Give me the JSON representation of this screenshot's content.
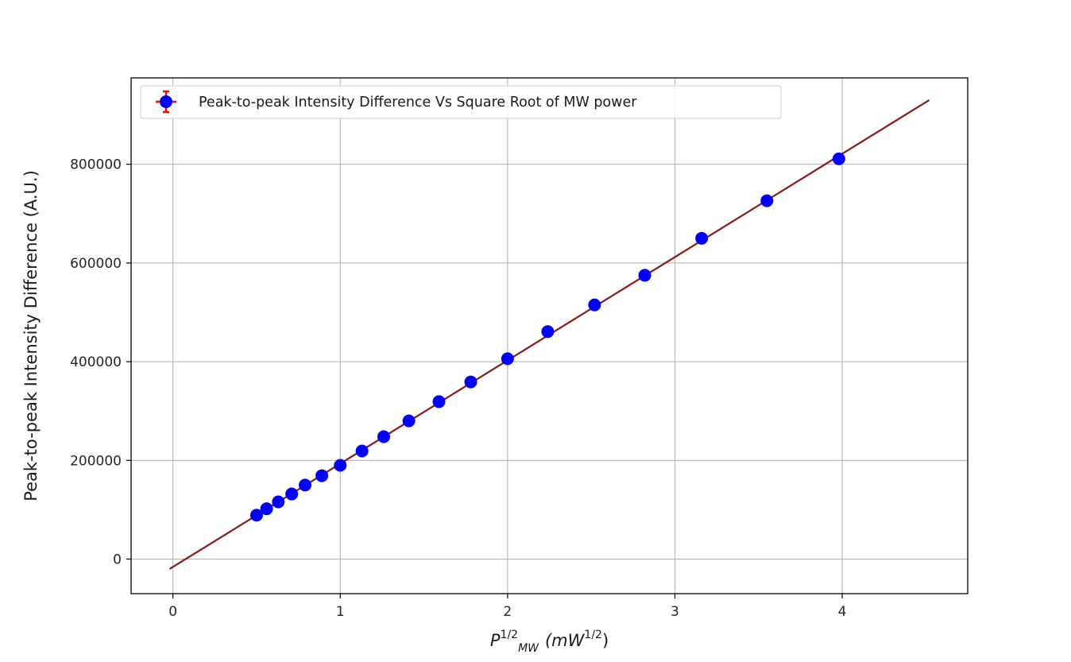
{
  "chart_data": {
    "type": "scatter",
    "title": "",
    "xlabel": {
      "base": "P",
      "superscript": "1/2",
      "subscript": "MW",
      "unit_open": "(mW",
      "unit_superscript": "1/2",
      "unit_close": ")"
    },
    "ylabel": "Peak-to-peak Intensity Difference (A.U.)",
    "xlim": [
      -0.25,
      4.75
    ],
    "ylim": [
      -70000,
      975000
    ],
    "x_ticks": [
      0,
      1,
      2,
      3,
      4
    ],
    "x_tick_labels": [
      "0",
      "1",
      "2",
      "3",
      "4"
    ],
    "y_ticks": [
      0,
      200000,
      400000,
      600000,
      800000
    ],
    "y_tick_labels": [
      "0",
      "200000",
      "400000",
      "600000",
      "800000"
    ],
    "grid": true,
    "legend": {
      "placement": "upper-left",
      "entries": [
        "Peak-to-peak Intensity Difference Vs Square Root of MW power"
      ]
    },
    "series": [
      {
        "name": "Peak-to-peak Intensity Difference Vs Square Root of MW power",
        "kind": "errorbar-points",
        "color": "#0000ff",
        "error_color": "#ff0000",
        "x": [
          0.5,
          0.56,
          0.63,
          0.71,
          0.79,
          0.89,
          1.0,
          1.13,
          1.26,
          1.41,
          1.59,
          1.78,
          2.0,
          2.24,
          2.52,
          2.82,
          3.16,
          3.55,
          3.98
        ],
        "y": [
          89000,
          102000,
          116000,
          132000,
          150000,
          169000,
          190000,
          219000,
          248000,
          280000,
          319000,
          359000,
          406000,
          461000,
          515000,
          575000,
          650000,
          726000,
          811000
        ]
      },
      {
        "kind": "fit-line",
        "color": "#8b1a1a",
        "x": [
          -0.02,
          4.52
        ],
        "y": [
          -20000,
          930000
        ]
      }
    ]
  }
}
